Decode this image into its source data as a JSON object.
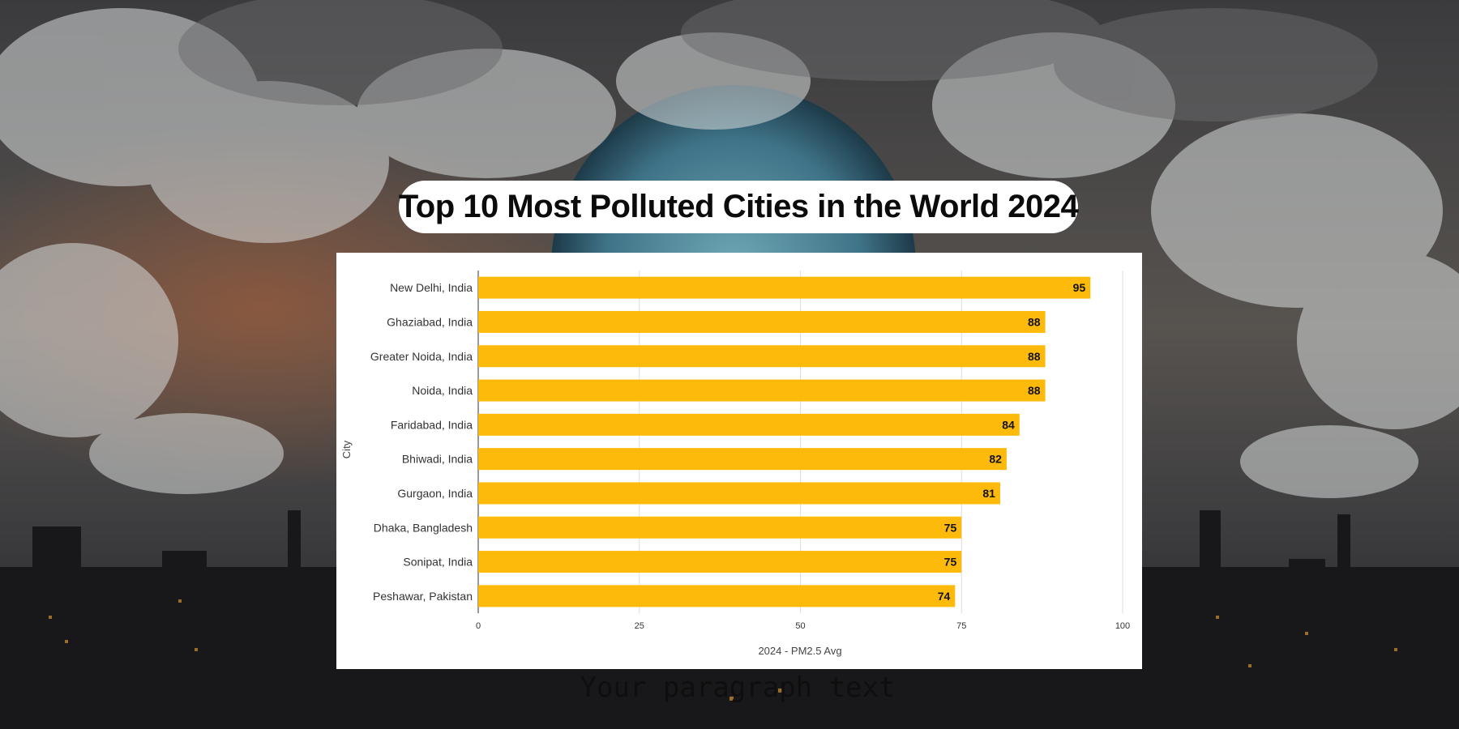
{
  "title": "Top 10 Most Polluted Cities in the World 2024",
  "caption": "Your paragraph text",
  "colors": {
    "bar": "#FDBA0A",
    "title_bg": "#ffffff",
    "card_bg": "#ffffff"
  },
  "chart_data": {
    "type": "bar",
    "orientation": "horizontal",
    "categories": [
      "New Delhi, India",
      "Ghaziabad, India",
      "Greater Noida, India",
      "Noida, India",
      "Faridabad, India",
      "Bhiwadi, India",
      "Gurgaon, India",
      "Dhaka, Bangladesh",
      "Sonipat, India",
      "Peshawar, Pakistan"
    ],
    "values": [
      95,
      88,
      88,
      88,
      84,
      82,
      81,
      75,
      75,
      74
    ],
    "xlabel": "2024 - PM2.5 Avg",
    "ylabel": "City",
    "xlim": [
      0,
      100
    ],
    "xticks": [
      0,
      25,
      50,
      75,
      100
    ],
    "grid": "vertical",
    "data_labels": true
  }
}
